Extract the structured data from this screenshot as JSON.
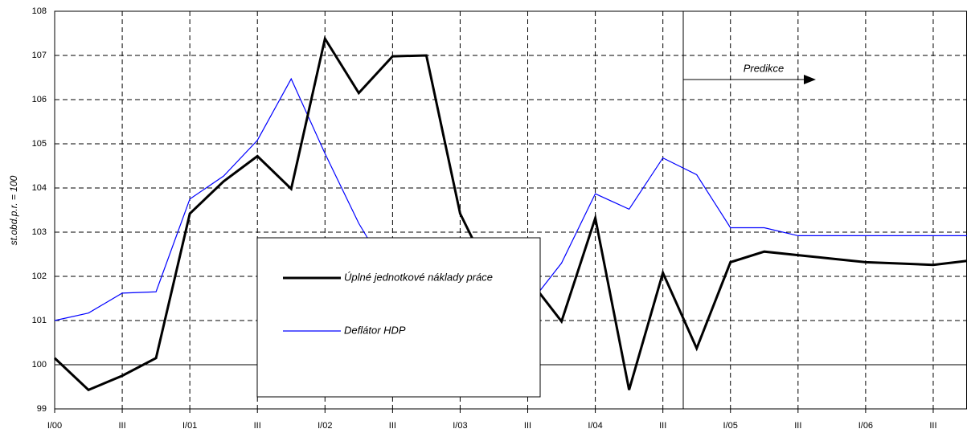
{
  "chart_data": {
    "type": "line",
    "y_label": "st.obd.p.r. = 100",
    "annotation": "Predikce",
    "categories": [
      "I/00",
      null,
      "III",
      null,
      "I/01",
      null,
      "III",
      null,
      "I/02",
      null,
      "III",
      null,
      "I/03",
      null,
      "III",
      null,
      "I/04",
      null,
      "III",
      null,
      "I/05",
      null,
      "III",
      null,
      "I/06",
      null,
      "III",
      null
    ],
    "series": [
      {
        "name": "Úplné jednotkové náklady práce",
        "color": "#000000",
        "values": [
          100.15,
          99.43,
          99.75,
          100.15,
          103.42,
          104.15,
          104.72,
          103.98,
          107.38,
          106.15,
          106.98,
          107.0,
          103.42,
          101.87,
          101.97,
          100.98,
          103.32,
          99.43,
          102.08,
          100.37,
          102.32,
          102.56,
          102.48,
          102.4,
          102.32,
          102.29,
          102.26,
          102.35
        ]
      },
      {
        "name": "Deflátor HDP",
        "color": "#0000ff",
        "values": [
          101.0,
          101.17,
          101.62,
          101.65,
          103.75,
          104.27,
          105.08,
          106.47,
          104.78,
          103.2,
          101.92,
          101.35,
          101.83,
          101.9,
          101.32,
          102.3,
          103.87,
          103.52,
          104.68,
          104.3,
          103.1,
          103.1,
          102.92,
          102.92,
          102.92,
          102.92,
          102.92,
          102.92
        ]
      }
    ],
    "ylim": [
      99,
      108
    ],
    "yticks": [
      99,
      100,
      101,
      102,
      103,
      104,
      105,
      106,
      107,
      108
    ],
    "grid": true
  }
}
